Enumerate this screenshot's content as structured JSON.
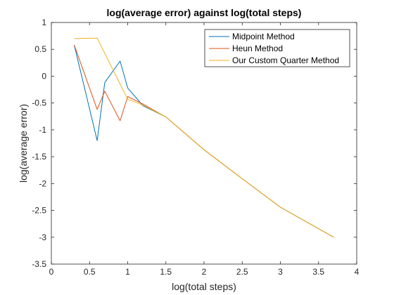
{
  "chart_data": {
    "type": "line",
    "title": "log(average error) against log(total steps)",
    "xlabel": "log(total steps)",
    "ylabel": "log(average error)",
    "xlim": [
      0,
      4
    ],
    "ylim": [
      -3.5,
      1
    ],
    "xticks": [
      0,
      0.5,
      1,
      1.5,
      2,
      2.5,
      3,
      3.5,
      4
    ],
    "yticks": [
      1,
      0.5,
      0,
      -0.5,
      -1,
      -1.5,
      -2,
      -2.5,
      -3,
      -3.5
    ],
    "xtick_labels": [
      "0",
      "0.5",
      "1",
      "1.5",
      "2",
      "2.5",
      "3",
      "3.5",
      "4"
    ],
    "ytick_labels": [
      "1",
      "0.5",
      "0",
      "-0.5",
      "-1",
      "-1.5",
      "-2",
      "-2.5",
      "-3",
      "-3.5"
    ],
    "grid": false,
    "legend_position": "top-right",
    "series": [
      {
        "name": "Midpoint Method",
        "color": "#0072BD",
        "x": [
          0.3,
          0.6,
          0.7,
          0.9,
          1.0,
          1.2,
          1.5,
          2.0,
          2.5,
          3.0,
          3.7
        ],
        "y": [
          0.58,
          -1.2,
          -0.12,
          0.28,
          -0.22,
          -0.55,
          -0.76,
          -1.37,
          -1.91,
          -2.44,
          -3.0
        ]
      },
      {
        "name": "Heun Method",
        "color": "#D95319",
        "x": [
          0.3,
          0.6,
          0.7,
          0.9,
          1.0,
          1.2,
          1.5,
          2.0,
          2.5,
          3.0,
          3.7
        ],
        "y": [
          0.58,
          -0.62,
          -0.28,
          -0.83,
          -0.38,
          -0.52,
          -0.76,
          -1.37,
          -1.91,
          -2.44,
          -3.0
        ]
      },
      {
        "name": "Our Custom Quarter Method",
        "color": "#EDB120",
        "x": [
          0.3,
          0.6,
          1.0,
          1.2,
          1.5,
          2.0,
          2.5,
          3.0,
          3.7
        ],
        "y": [
          0.7,
          0.71,
          -0.43,
          -0.54,
          -0.76,
          -1.37,
          -1.91,
          -2.44,
          -3.0
        ]
      }
    ]
  }
}
